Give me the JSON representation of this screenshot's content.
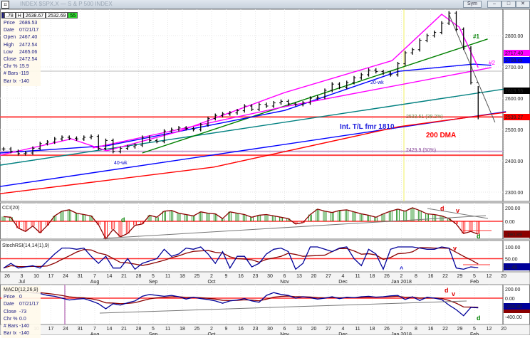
{
  "window": {
    "title": "INDEX $SPX.X — S & P 500 INDEX",
    "icon": "chart-icon",
    "buttons": [
      "minimize",
      "maximize",
      "close"
    ],
    "tab_label": "Sym"
  },
  "toolbar": {
    "v1": ".78",
    "v2": "H",
    "v3": "2638.67",
    "v4": "2532.69",
    "v5": "55"
  },
  "info": {
    "rows": [
      [
        "Price",
        "2686.53"
      ],
      [
        "Date",
        "07/21/17"
      ],
      [
        "Open",
        "2467.40"
      ],
      [
        "High",
        "2472.54"
      ],
      [
        "Low",
        "2465.06"
      ],
      [
        "Close",
        "2472.54"
      ],
      [
        "Chr %",
        "15.9"
      ],
      [
        "# Bars",
        "-119"
      ],
      [
        "Bar Ix",
        "-140"
      ]
    ]
  },
  "macd_info": {
    "rows": [
      [
        "Price",
        "0"
      ],
      [
        "Date",
        "07/21/17"
      ],
      [
        "Close",
        "-73"
      ],
      [
        "Chr %",
        "0.0"
      ],
      [
        "# Bars",
        "-140"
      ],
      [
        "Bar Ix",
        "-140"
      ]
    ]
  },
  "colors": {
    "price": "#000000",
    "ma20": "#ff00ff",
    "ma40": "#0000ff",
    "dma200": "#ff0000",
    "green": "#008000",
    "teal": "#008080",
    "cci_up": "#008000",
    "cci_dn": "#ff0000",
    "k": "#000099",
    "d": "#8b0000"
  },
  "chart_data": [
    {
      "type": "ohlc",
      "title": "S & P 500 INDEX",
      "closes": [
        2438,
        2430,
        2423,
        2425,
        2440,
        2455,
        2460,
        2470,
        2475,
        2472,
        2470,
        2475,
        2478,
        2440,
        2465,
        2430,
        2440,
        2445,
        2450,
        2475,
        2465,
        2462,
        2495,
        2500,
        2505,
        2503,
        2500,
        2515,
        2535,
        2545,
        2550,
        2553,
        2560,
        2575,
        2565,
        2580,
        2575,
        2585,
        2590,
        2582,
        2580,
        2585,
        2600,
        2603,
        2625,
        2645,
        2635,
        2650,
        2665,
        2675,
        2690,
        2685,
        2680,
        2675,
        2710,
        2745,
        2755,
        2785,
        2800,
        2810,
        2840,
        2872,
        2820,
        2760,
        2650,
        2619.55
      ],
      "last_bar": {
        "high": 2638.67,
        "low": 2532.69,
        "close": 2619.55
      },
      "ylim": [
        2260,
        2890
      ],
      "yticks": [
        "2800.00",
        "2700.00",
        "2600.00",
        "2500.00",
        "2400.00",
        "2300.00"
      ],
      "yticks_values": [
        2800,
        2700,
        2600,
        2500,
        2400,
        2300
      ],
      "value_tags": [
        {
          "text": "2717.40",
          "price": 2717.4,
          "color": "#ff00ff"
        },
        {
          "text": "2708.xx",
          "price": 2705,
          "color": "#0000ff"
        },
        {
          "text": "2619.55",
          "price": 2619.55,
          "color": "#000000"
        },
        {
          "text": "2539.27",
          "price": 2539.27,
          "color": "#ff0000"
        }
      ],
      "lines": [
        {
          "name": "teal-trendline",
          "color": "#008080",
          "pts": [
            [
              -0.5,
              2386
            ],
            [
              68.8,
              2630
            ]
          ]
        },
        {
          "name": "int-trendline",
          "color": "#0000ff",
          "pts": [
            [
              -0.5,
              2318
            ],
            [
              68.8,
              2557
            ]
          ]
        },
        {
          "name": "dma200",
          "color": "#ff0000",
          "pts": [
            [
              -0.5,
              2295
            ],
            [
              28.8,
              2380
            ],
            [
              54.1,
              2509
            ],
            [
              68.8,
              2555
            ]
          ]
        },
        {
          "name": "green-channel",
          "color": "#008000",
          "pts": [
            [
              19,
              2425
            ],
            [
              66.3,
              2789
            ]
          ]
        },
        {
          "name": "ma40wk",
          "color": "#0000ff",
          "pts": [
            [
              -0.5,
              2425
            ],
            [
              14.1,
              2448
            ],
            [
              38.5,
              2561
            ],
            [
              54.1,
              2686
            ],
            [
              64.4,
              2709
            ],
            [
              66.8,
              2705
            ]
          ]
        },
        {
          "name": "pink-trendline",
          "color": "#ff00ff",
          "pts": [
            [
              12.2,
              2441
            ],
            [
              38.5,
              2573
            ],
            [
              66.8,
              2698
            ]
          ]
        },
        {
          "name": "ma20wk",
          "color": "#ff00ff",
          "pts": [
            [
              -0.5,
              2418
            ],
            [
              9.3,
              2470
            ],
            [
              14.1,
              2432
            ],
            [
              23.9,
              2493
            ],
            [
              38.5,
              2618
            ],
            [
              53.2,
              2720
            ],
            [
              60,
              2868
            ],
            [
              62.4,
              2827
            ],
            [
              65,
              2698
            ]
          ]
        },
        {
          "name": "downtrend",
          "color": "#555555",
          "pts": [
            [
              61,
              2868
            ],
            [
              67.3,
              2523
            ]
          ]
        }
      ],
      "hlines": [
        {
          "price": 2540,
          "color": "#ff4444"
        },
        {
          "price": 2430,
          "color": "#c8a0d0"
        },
        {
          "price": 2418,
          "color": "#ff4444"
        }
      ],
      "annotations": {
        "n1": "#1",
        "n2": "#2",
        "wk20": "20-wk",
        "wk40": "40-wk",
        "tl": "Int. T/L fmr 1810",
        "dma": "200 DMA",
        "fib38": "2533.51 (38.2%)",
        "fib50": "2429.9 (50%)"
      }
    },
    {
      "type": "bar",
      "title": "CCI(20)",
      "yticks": [
        "200.00",
        "0.00"
      ],
      "value_tag": "-190.89",
      "values": [
        70,
        60,
        -100,
        -150,
        -70,
        -170,
        -60,
        80,
        150,
        170,
        120,
        100,
        80,
        -50,
        -260,
        -120,
        -230,
        -180,
        -60,
        -40,
        90,
        60,
        150,
        160,
        120,
        100,
        80,
        140,
        120,
        110,
        40,
        140,
        120,
        100,
        60,
        90,
        100,
        80,
        60,
        40,
        -40,
        -20,
        100,
        180,
        150,
        130,
        160,
        170,
        140,
        110,
        90,
        60,
        110,
        150,
        180,
        150,
        200,
        160,
        110,
        100,
        80,
        40,
        -40,
        -180,
        -150,
        -190.89
      ],
      "labels": {
        "d1": "d",
        "v": "v",
        "d2": "d",
        "d3": "d"
      }
    },
    {
      "type": "line",
      "title": "StochRSI(14,14(1),9)",
      "yticks": [
        "100.00",
        "50.00"
      ],
      "value_tag": "11.45",
      "k": [
        10,
        30,
        10,
        15,
        20,
        10,
        40,
        70,
        95,
        95,
        90,
        95,
        60,
        30,
        60,
        10,
        10,
        50,
        5,
        30,
        40,
        50,
        90,
        60,
        70,
        95,
        90,
        100,
        70,
        30,
        80,
        10,
        60,
        60,
        15,
        30,
        70,
        90,
        95,
        80,
        5,
        30,
        100,
        100,
        90,
        80,
        95,
        100,
        50,
        20,
        90,
        70,
        5,
        90,
        100,
        100,
        100,
        95,
        90,
        90,
        100,
        95,
        10,
        5,
        15,
        11.45
      ],
      "labels": {
        "up": "^",
        "v": "v"
      }
    },
    {
      "type": "line",
      "title": "MACD(12,26,9)",
      "yticks": [
        "200.00",
        "0.00",
        "-400.00"
      ],
      "value_tag": "-208.80",
      "macd": [
        130,
        150,
        120,
        140,
        110,
        100,
        60,
        40,
        0,
        -40,
        -20,
        -10,
        -60,
        -120,
        -230,
        -120,
        -150,
        -100,
        -60,
        40,
        80,
        60,
        40,
        60,
        30,
        -20,
        20,
        -10,
        -30,
        -60,
        -110,
        -60,
        -40,
        -10,
        -60,
        -90,
        60,
        120,
        80,
        60,
        0,
        30,
        10,
        -20,
        0,
        30,
        -10,
        20,
        10,
        30,
        40,
        20,
        30,
        50,
        60,
        -30,
        30,
        -50,
        20,
        0,
        -30,
        -150,
        -250,
        -380,
        -200,
        -208.8
      ],
      "labels": {
        "d1": "d",
        "v": "v",
        "d2": "d"
      }
    }
  ],
  "xaxis": {
    "days": [
      "26",
      "3",
      "10",
      "17",
      "24",
      "31",
      "7",
      "14",
      "21",
      "28",
      "5",
      "11",
      "18",
      "25",
      "2",
      "9",
      "16",
      "23",
      "30",
      "6",
      "13",
      "20",
      "27",
      "4",
      "11",
      "18",
      "26",
      "2",
      "8",
      "16",
      "22",
      "29",
      "5",
      "12",
      "20"
    ],
    "months": [
      [
        "Jul",
        1
      ],
      [
        "Aug",
        6
      ],
      [
        "Sep",
        10
      ],
      [
        "Oct",
        14
      ],
      [
        "Nov",
        19
      ],
      [
        "Dec",
        23
      ],
      [
        "Jan 2018",
        27
      ],
      [
        "Feb",
        32
      ]
    ]
  }
}
